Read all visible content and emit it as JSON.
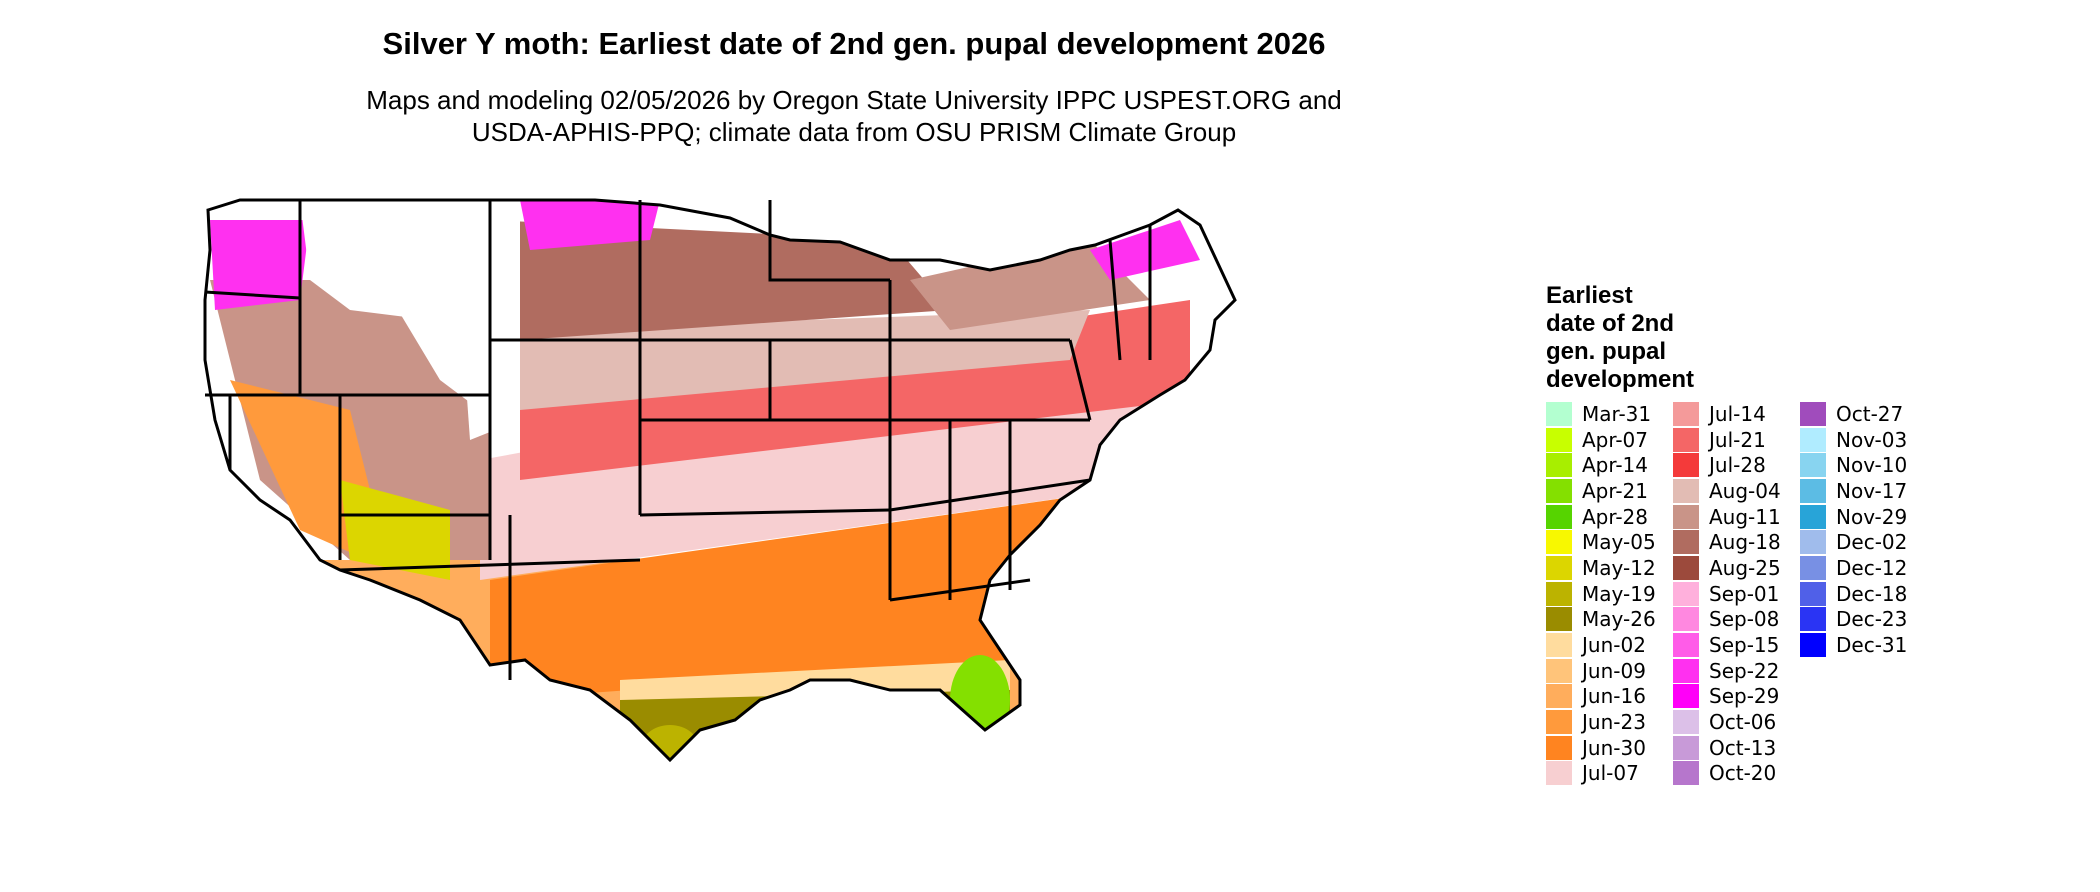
{
  "title": "Silver Y moth: Earliest date of 2nd gen. pupal development 2026",
  "subtitle_line1": "Maps and modeling 02/05/2026 by Oregon State University IPPC USPEST.ORG and",
  "subtitle_line2": "USDA-APHIS-PPQ; climate data from OSU PRISM Climate Group",
  "legend": {
    "title_lines": [
      "Earliest",
      "date of 2nd",
      "gen. pupal",
      "development"
    ],
    "columns": [
      [
        {
          "label": "Mar-31",
          "color": "#b3ffd0"
        },
        {
          "label": "Apr-07",
          "color": "#c8ff00"
        },
        {
          "label": "Apr-14",
          "color": "#a8ee00"
        },
        {
          "label": "Apr-21",
          "color": "#84e000"
        },
        {
          "label": "Apr-28",
          "color": "#56d400"
        },
        {
          "label": "May-05",
          "color": "#f8f800"
        },
        {
          "label": "May-12",
          "color": "#dcd600"
        },
        {
          "label": "May-19",
          "color": "#bcb300"
        },
        {
          "label": "May-26",
          "color": "#9a8c00"
        },
        {
          "label": "Jun-02",
          "color": "#ffdc9e"
        },
        {
          "label": "Jun-09",
          "color": "#ffc47a"
        },
        {
          "label": "Jun-16",
          "color": "#ffad5c"
        },
        {
          "label": "Jun-23",
          "color": "#ff9a3c"
        },
        {
          "label": "Jun-30",
          "color": "#ff8420"
        },
        {
          "label": "Jul-07",
          "color": "#f7cfd1"
        }
      ],
      [
        {
          "label": "Jul-14",
          "color": "#f49a9a"
        },
        {
          "label": "Jul-21",
          "color": "#f46666"
        },
        {
          "label": "Jul-28",
          "color": "#f43a3a"
        },
        {
          "label": "Aug-04",
          "color": "#e2bcb4"
        },
        {
          "label": "Aug-11",
          "color": "#c99488"
        },
        {
          "label": "Aug-18",
          "color": "#b06c60"
        },
        {
          "label": "Aug-25",
          "color": "#9c4a3c"
        },
        {
          "label": "Sep-01",
          "color": "#ffb0dc"
        },
        {
          "label": "Sep-08",
          "color": "#ff88e0"
        },
        {
          "label": "Sep-15",
          "color": "#ff5ce8"
        },
        {
          "label": "Sep-22",
          "color": "#ff30f0"
        },
        {
          "label": "Sep-29",
          "color": "#ff00f8"
        },
        {
          "label": "Oct-06",
          "color": "#dcc0e8"
        },
        {
          "label": "Oct-13",
          "color": "#c89ad8"
        },
        {
          "label": "Oct-20",
          "color": "#b676cc"
        }
      ],
      [
        {
          "label": "Oct-27",
          "color": "#a04cbc"
        },
        {
          "label": "Nov-03",
          "color": "#b0ecff"
        },
        {
          "label": "Nov-10",
          "color": "#88d4f0"
        },
        {
          "label": "Nov-17",
          "color": "#5cbce4"
        },
        {
          "label": "Nov-29",
          "color": "#28a4d8"
        },
        {
          "label": "Dec-02",
          "color": "#a0bcec"
        },
        {
          "label": "Dec-12",
          "color": "#7890e4"
        },
        {
          "label": "Dec-18",
          "color": "#5060e8"
        },
        {
          "label": "Dec-23",
          "color": "#2a34f4"
        },
        {
          "label": "Dec-31",
          "color": "#0000ff"
        }
      ]
    ]
  }
}
